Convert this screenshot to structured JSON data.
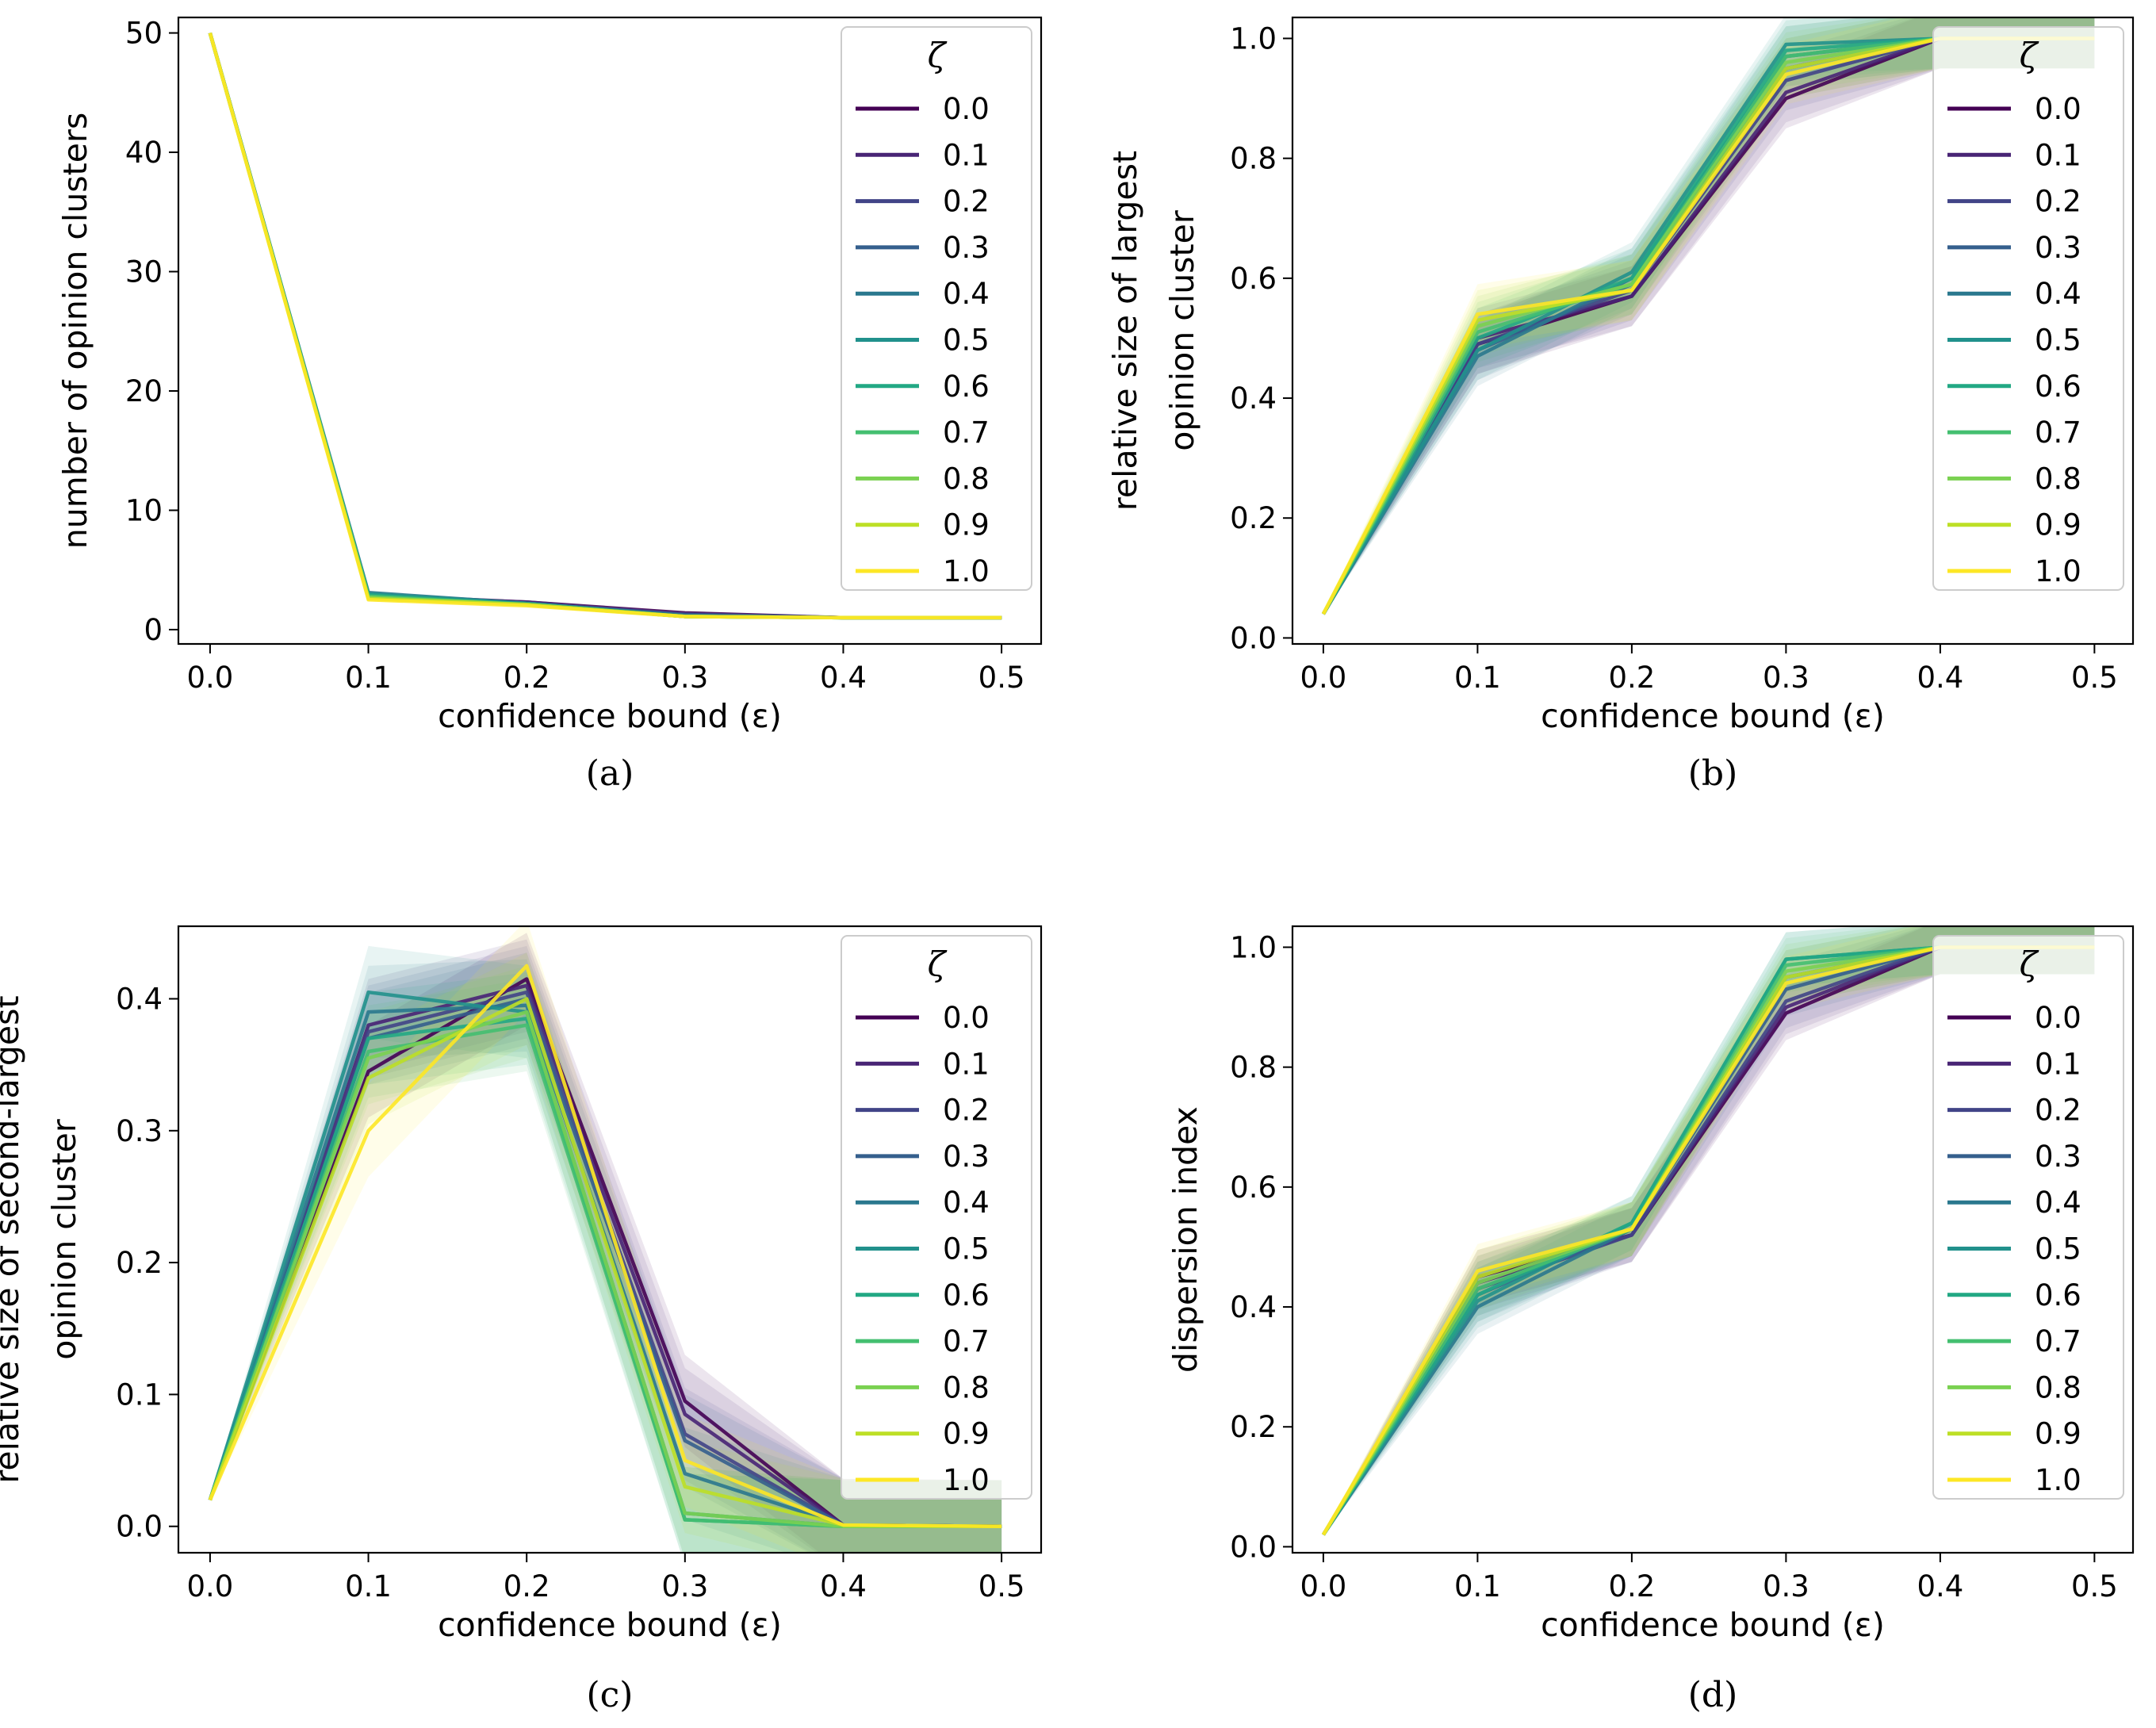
{
  "legend": {
    "title": "ζ",
    "placement": "upper right",
    "labels": [
      "0.0",
      "0.1",
      "0.2",
      "0.3",
      "0.4",
      "0.5",
      "0.6",
      "0.7",
      "0.8",
      "0.9",
      "1.0"
    ]
  },
  "colors": [
    "#440154",
    "#482475",
    "#414487",
    "#355f8d",
    "#2a788e",
    "#21918c",
    "#22a884",
    "#44bf70",
    "#7ad151",
    "#bddf26",
    "#fde725"
  ],
  "chart_data": [
    {
      "type": "line",
      "caption": "(a)",
      "xlabel": "confidence bound (ε)",
      "ylabel": [
        "number of opinion clusters"
      ],
      "x": [
        0.0,
        0.1,
        0.2,
        0.3,
        0.4,
        0.5
      ],
      "xticks": [
        "0.0",
        "0.1",
        "0.2",
        "0.3",
        "0.4",
        "0.5"
      ],
      "yticks": [
        0,
        10,
        20,
        30,
        40,
        50
      ],
      "xlim": [
        -0.02,
        0.525
      ],
      "ylim": [
        -1.2,
        51.3
      ],
      "series": [
        {
          "name": "0.0",
          "values": [
            50,
            2.9,
            2.3,
            1.4,
            1.0,
            1.0
          ]
        },
        {
          "name": "0.1",
          "values": [
            50,
            2.8,
            2.3,
            1.3,
            1.0,
            1.0
          ]
        },
        {
          "name": "0.2",
          "values": [
            50,
            2.9,
            2.2,
            1.3,
            1.0,
            1.0
          ]
        },
        {
          "name": "0.3",
          "values": [
            50,
            2.7,
            2.2,
            1.2,
            1.0,
            1.0
          ]
        },
        {
          "name": "0.4",
          "values": [
            50,
            3.1,
            2.2,
            1.2,
            1.0,
            1.0
          ]
        },
        {
          "name": "0.5",
          "values": [
            50,
            3.0,
            2.2,
            1.1,
            1.0,
            1.0
          ]
        },
        {
          "name": "0.6",
          "values": [
            50,
            2.9,
            2.1,
            1.1,
            1.0,
            1.0
          ]
        },
        {
          "name": "0.7",
          "values": [
            50,
            2.8,
            2.1,
            1.1,
            1.0,
            1.0
          ]
        },
        {
          "name": "0.8",
          "values": [
            50,
            2.7,
            2.1,
            1.1,
            1.0,
            1.0
          ]
        },
        {
          "name": "0.9",
          "values": [
            50,
            2.6,
            2.1,
            1.1,
            1.0,
            1.0
          ]
        },
        {
          "name": "1.0",
          "values": [
            50,
            2.5,
            2.0,
            1.1,
            1.0,
            1.0
          ]
        }
      ]
    },
    {
      "type": "line",
      "caption": "(b)",
      "xlabel": "confidence bound (ε)",
      "ylabel": [
        "relative size of largest",
        "opinion cluster"
      ],
      "x": [
        0.0,
        0.1,
        0.2,
        0.3,
        0.4,
        0.5
      ],
      "xticks": [
        "0.0",
        "0.1",
        "0.2",
        "0.3",
        "0.4",
        "0.5"
      ],
      "yticks": [
        0.0,
        0.2,
        0.4,
        0.6,
        0.8,
        1.0
      ],
      "xlim": [
        -0.02,
        0.525
      ],
      "ylim": [
        -0.01,
        1.035
      ],
      "band": 0.05,
      "series": [
        {
          "name": "0.0",
          "values": [
            0.04,
            0.49,
            0.57,
            0.9,
            1.0,
            1.0
          ]
        },
        {
          "name": "0.1",
          "values": [
            0.04,
            0.5,
            0.57,
            0.91,
            1.0,
            1.0
          ]
        },
        {
          "name": "0.2",
          "values": [
            0.04,
            0.49,
            0.58,
            0.93,
            1.0,
            1.0
          ]
        },
        {
          "name": "0.3",
          "values": [
            0.04,
            0.48,
            0.59,
            0.95,
            1.0,
            1.0
          ]
        },
        {
          "name": "0.4",
          "values": [
            0.04,
            0.47,
            0.6,
            0.97,
            1.0,
            1.0
          ]
        },
        {
          "name": "0.5",
          "values": [
            0.04,
            0.48,
            0.61,
            0.99,
            1.0,
            1.0
          ]
        },
        {
          "name": "0.6",
          "values": [
            0.04,
            0.5,
            0.6,
            0.98,
            1.0,
            1.0
          ]
        },
        {
          "name": "0.7",
          "values": [
            0.04,
            0.51,
            0.59,
            0.97,
            1.0,
            1.0
          ]
        },
        {
          "name": "0.8",
          "values": [
            0.04,
            0.52,
            0.59,
            0.96,
            1.0,
            1.0
          ]
        },
        {
          "name": "0.9",
          "values": [
            0.04,
            0.53,
            0.58,
            0.95,
            1.0,
            1.0
          ]
        },
        {
          "name": "1.0",
          "values": [
            0.04,
            0.54,
            0.58,
            0.94,
            1.0,
            1.0
          ]
        }
      ]
    },
    {
      "type": "line",
      "caption": "(c)",
      "xlabel": "confidence bound (ε)",
      "ylabel": [
        "relative size of second-largest",
        "opinion cluster"
      ],
      "x": [
        0.0,
        0.1,
        0.2,
        0.3,
        0.4,
        0.5
      ],
      "xticks": [
        "0.0",
        "0.1",
        "0.2",
        "0.3",
        "0.4",
        "0.5"
      ],
      "yticks": [
        0.0,
        0.1,
        0.2,
        0.3,
        0.4
      ],
      "xlim": [
        -0.02,
        0.525
      ],
      "ylim": [
        -0.02,
        0.455
      ],
      "band": 0.035,
      "series": [
        {
          "name": "0.0",
          "values": [
            0.02,
            0.345,
            0.415,
            0.095,
            0.001,
            0.0
          ]
        },
        {
          "name": "0.1",
          "values": [
            0.02,
            0.38,
            0.41,
            0.085,
            0.001,
            0.0
          ]
        },
        {
          "name": "0.2",
          "values": [
            0.02,
            0.375,
            0.405,
            0.07,
            0.001,
            0.0
          ]
        },
        {
          "name": "0.3",
          "values": [
            0.02,
            0.37,
            0.4,
            0.065,
            0.001,
            0.0
          ]
        },
        {
          "name": "0.4",
          "values": [
            0.02,
            0.39,
            0.395,
            0.04,
            0.001,
            0.0
          ]
        },
        {
          "name": "0.5",
          "values": [
            0.02,
            0.405,
            0.39,
            0.01,
            0.0,
            0.0
          ]
        },
        {
          "name": "0.6",
          "values": [
            0.02,
            0.37,
            0.385,
            0.005,
            0.0,
            0.0
          ]
        },
        {
          "name": "0.7",
          "values": [
            0.02,
            0.36,
            0.38,
            0.005,
            0.0,
            0.0
          ]
        },
        {
          "name": "0.8",
          "values": [
            0.02,
            0.355,
            0.39,
            0.01,
            0.0,
            0.0
          ]
        },
        {
          "name": "0.9",
          "values": [
            0.02,
            0.34,
            0.4,
            0.03,
            0.001,
            0.0
          ]
        },
        {
          "name": "1.0",
          "values": [
            0.02,
            0.3,
            0.425,
            0.05,
            0.001,
            0.0
          ]
        }
      ]
    },
    {
      "type": "line",
      "caption": "(d)",
      "xlabel": "confidence bound (ε)",
      "ylabel": [
        "dispersion index"
      ],
      "x": [
        0.0,
        0.1,
        0.2,
        0.3,
        0.4,
        0.5
      ],
      "xticks": [
        "0.0",
        "0.1",
        "0.2",
        "0.3",
        "0.4",
        "0.5"
      ],
      "yticks": [
        0.0,
        0.2,
        0.4,
        0.6,
        0.8,
        1.0
      ],
      "xlim": [
        -0.02,
        0.525
      ],
      "ylim": [
        -0.01,
        1.035
      ],
      "band": 0.045,
      "series": [
        {
          "name": "0.0",
          "values": [
            0.02,
            0.45,
            0.52,
            0.89,
            1.0,
            1.0
          ]
        },
        {
          "name": "0.1",
          "values": [
            0.02,
            0.44,
            0.52,
            0.9,
            1.0,
            1.0
          ]
        },
        {
          "name": "0.2",
          "values": [
            0.02,
            0.43,
            0.52,
            0.91,
            1.0,
            1.0
          ]
        },
        {
          "name": "0.3",
          "values": [
            0.02,
            0.42,
            0.53,
            0.93,
            1.0,
            1.0
          ]
        },
        {
          "name": "0.4",
          "values": [
            0.02,
            0.4,
            0.53,
            0.95,
            1.0,
            1.0
          ]
        },
        {
          "name": "0.5",
          "values": [
            0.02,
            0.41,
            0.54,
            0.98,
            1.0,
            1.0
          ]
        },
        {
          "name": "0.6",
          "values": [
            0.02,
            0.42,
            0.54,
            0.98,
            1.0,
            1.0
          ]
        },
        {
          "name": "0.7",
          "values": [
            0.02,
            0.43,
            0.53,
            0.97,
            1.0,
            1.0
          ]
        },
        {
          "name": "0.8",
          "values": [
            0.02,
            0.44,
            0.53,
            0.96,
            1.0,
            1.0
          ]
        },
        {
          "name": "0.9",
          "values": [
            0.02,
            0.45,
            0.53,
            0.95,
            1.0,
            1.0
          ]
        },
        {
          "name": "1.0",
          "values": [
            0.02,
            0.46,
            0.53,
            0.94,
            1.0,
            1.0
          ]
        }
      ]
    }
  ]
}
